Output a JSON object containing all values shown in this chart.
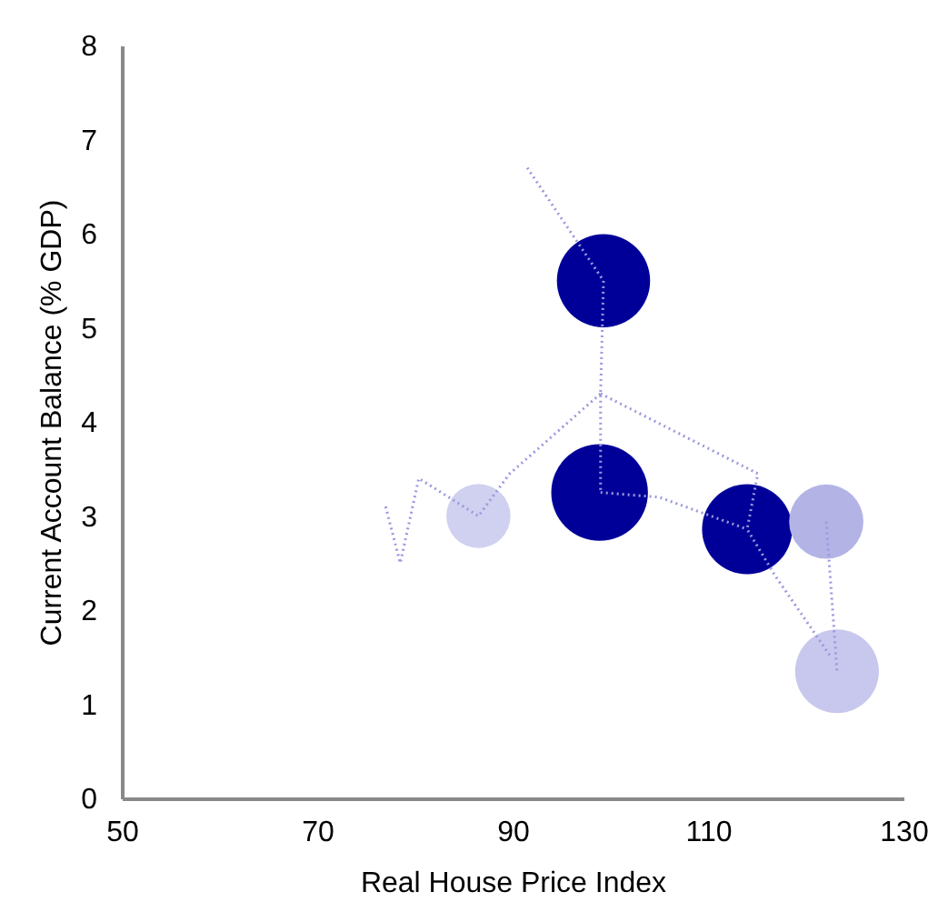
{
  "chart_data": {
    "type": "bubble",
    "xlabel": "Real House Price Index",
    "ylabel": "Current Account  Balance (% GDP)",
    "xlim": [
      50,
      130
    ],
    "xticks": [
      50,
      70,
      90,
      110,
      130
    ],
    "ylim": [
      0,
      8
    ],
    "yticks": [
      0,
      1,
      2,
      3,
      4,
      5,
      6,
      7,
      8
    ],
    "line_style": "dotted",
    "series": [
      {
        "type": "line",
        "color": "#9999dd",
        "x": [
          91.5,
          99.3,
          99,
          99
        ],
        "values": [
          6.7,
          5.5,
          4.3,
          3.25
        ]
      },
      {
        "type": "line",
        "color": "#9999dd",
        "x": [
          77,
          78.5,
          80.4,
          86.5,
          89.7,
          99
        ],
        "values": [
          3.1,
          2.5,
          3.4,
          3.0,
          3.45,
          4.3
        ]
      },
      {
        "type": "line",
        "color": "#9999dd",
        "x": [
          99,
          115.1,
          114,
          116.9,
          122.6
        ],
        "values": [
          4.3,
          3.45,
          2.86,
          2.36,
          1.5
        ]
      },
      {
        "type": "line",
        "color": "#9999dd",
        "x": [
          99,
          105,
          114
        ],
        "values": [
          3.25,
          3.2,
          2.86
        ]
      },
      {
        "type": "line",
        "color": "#9999dd",
        "x": [
          122.1,
          123.2
        ],
        "values": [
          2.94,
          1.35
        ]
      },
      {
        "x": [
          99.3,
          98.9,
          114,
          122.1,
          123.2,
          86.5
        ],
        "values": [
          5.5,
          3.25,
          2.86,
          2.94,
          1.35,
          3.0
        ],
        "sizes": [
          0.93,
          1,
          0.87,
          0.59,
          0.75,
          0.44
        ],
        "colors": [
          "#000099",
          "#000099",
          "#000099",
          "#b3b3e6",
          "#c8c8ee",
          "#d0d0f0"
        ]
      }
    ]
  }
}
